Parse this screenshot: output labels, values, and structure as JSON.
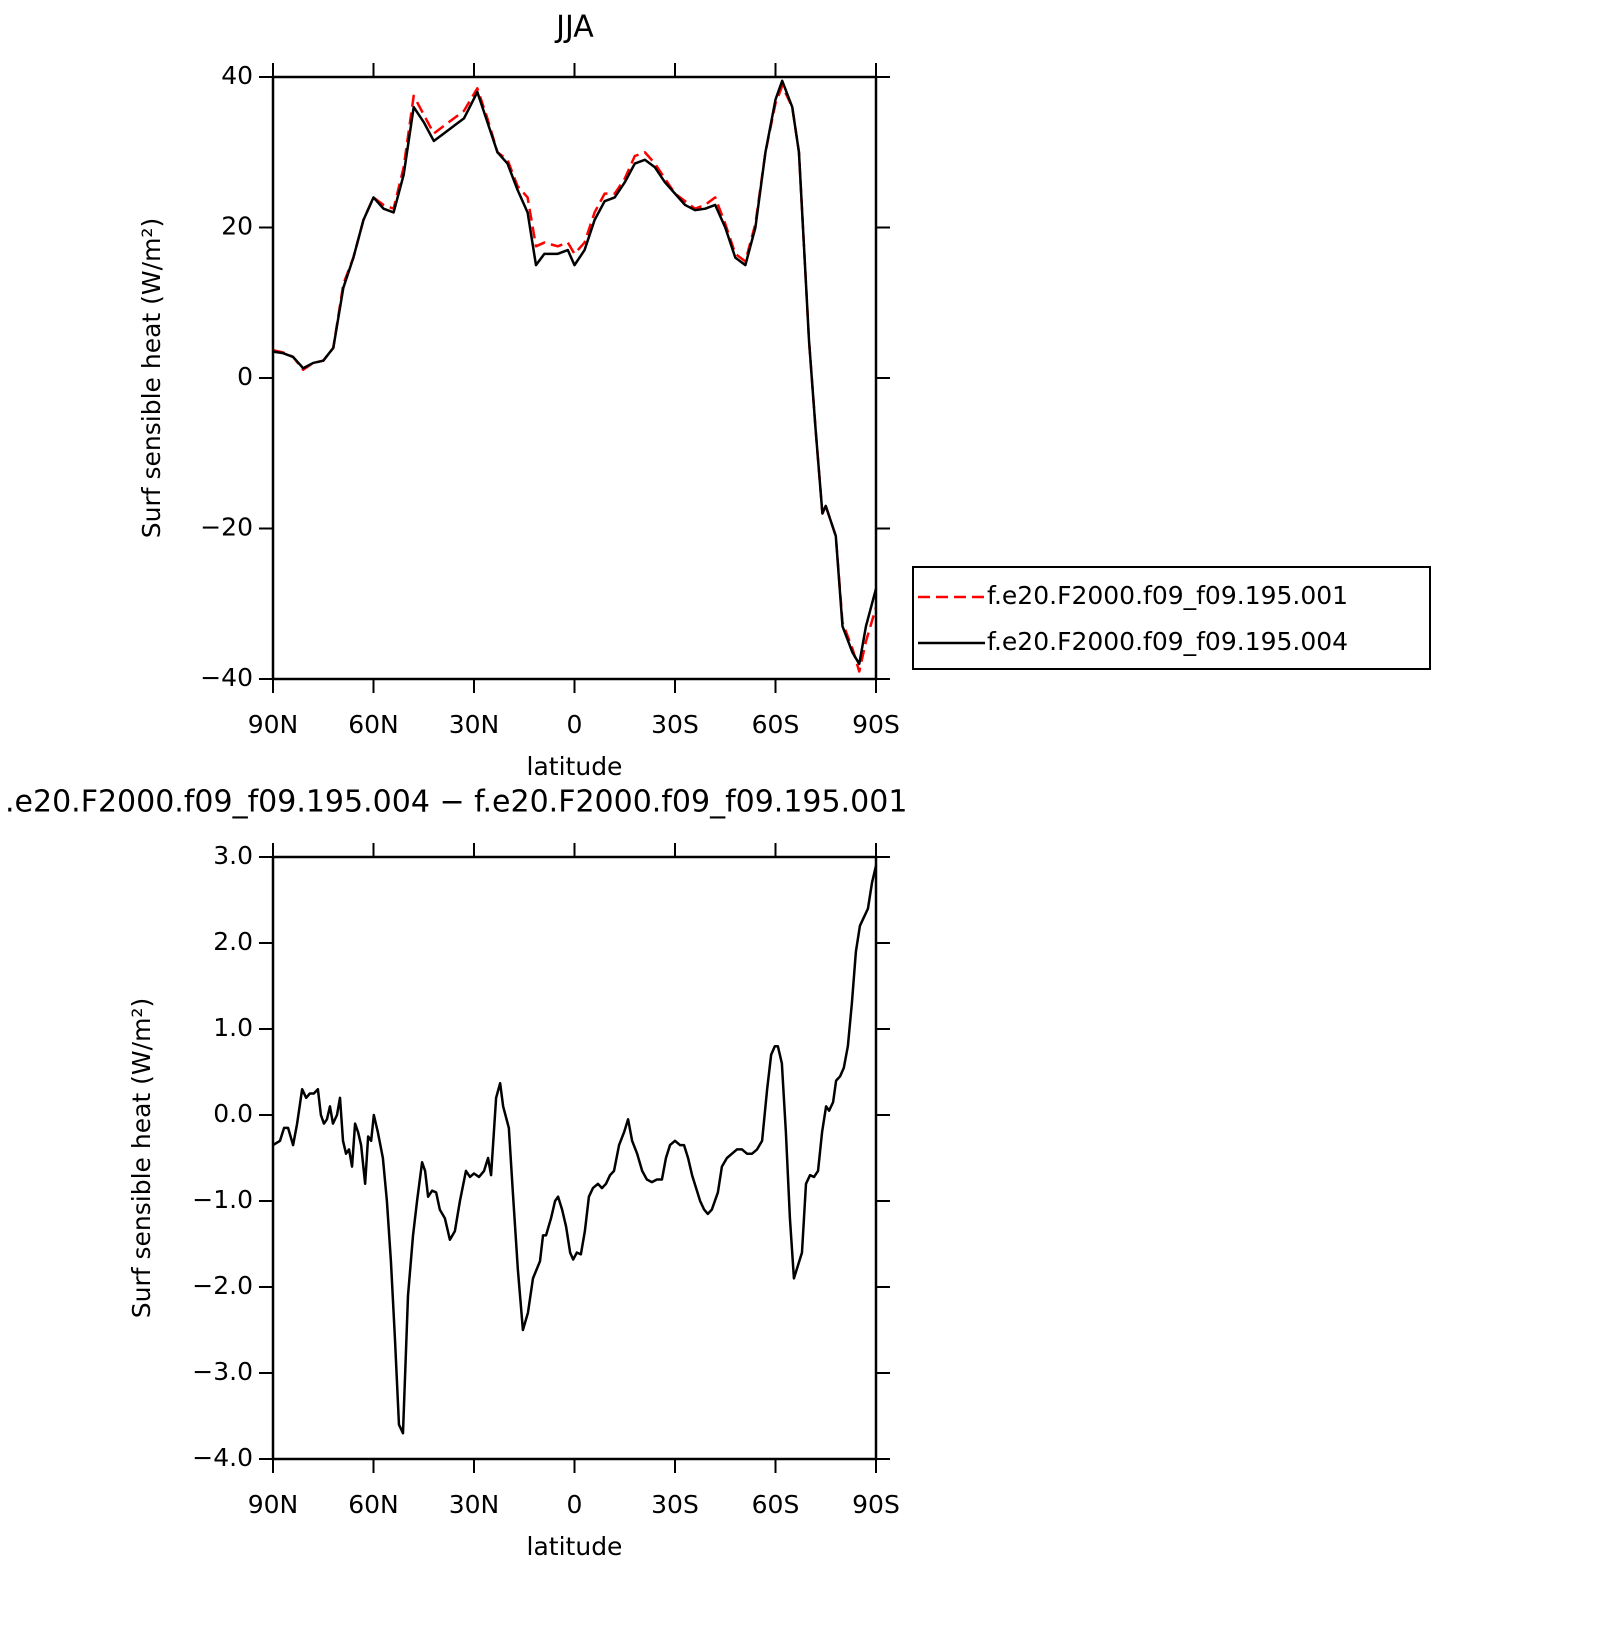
{
  "chart_data": [
    {
      "type": "line",
      "title": "JJA",
      "xlabel": "latitude",
      "ylabel": "Surf sensible heat (W/m²)",
      "xlim": [
        90,
        -90
      ],
      "xticks": [
        {
          "value": 90,
          "label": "90N"
        },
        {
          "value": 60,
          "label": "60N"
        },
        {
          "value": 30,
          "label": "30N"
        },
        0,
        {
          "value": -30,
          "label": "30S"
        },
        {
          "value": -60,
          "label": "60S"
        },
        {
          "value": -90,
          "label": "90S"
        }
      ],
      "ylim": [
        -40,
        40
      ],
      "yticks": [
        {
          "value": -40,
          "label": "−40"
        },
        {
          "value": -20,
          "label": "−20"
        },
        0,
        20,
        40
      ],
      "legend": "right",
      "x": [
        90,
        87,
        84,
        81,
        78,
        75,
        72,
        69,
        66,
        63,
        60,
        57,
        54,
        51,
        48,
        45,
        42,
        39,
        36,
        33,
        29,
        26,
        23,
        20,
        17,
        14,
        11.5,
        9,
        5,
        2,
        0,
        -3,
        -6,
        -9,
        -12,
        -15,
        -18,
        -21,
        -24,
        -27,
        -30,
        -33,
        -36,
        -39,
        -42,
        -45,
        -48,
        -51,
        -54,
        -57,
        -60,
        -62,
        -65,
        -67,
        -70,
        -72,
        -74,
        -75,
        -78,
        -80,
        -83,
        -85,
        -87,
        -90
      ],
      "series": [
        {
          "name": "f.e20.F2000.f09_f09.195.001",
          "color": "#ff0000",
          "dash": "dashed",
          "values": [
            3.7,
            3.4,
            2.8,
            1.1,
            2.0,
            2.3,
            4,
            12.5,
            16,
            21,
            24,
            23,
            22.5,
            28,
            37.5,
            35,
            32.5,
            33.5,
            34.5,
            35.5,
            38.5,
            34.5,
            30,
            29,
            25.5,
            24,
            17.5,
            18,
            17.5,
            18,
            16.5,
            18,
            22,
            24.5,
            24.5,
            26.5,
            29.5,
            30,
            28.5,
            26.5,
            24.5,
            23.5,
            22.5,
            23,
            24,
            20.5,
            16.5,
            15.5,
            20.5,
            30,
            36.5,
            38.8,
            36,
            30,
            5,
            -7,
            -18,
            -17,
            -21,
            -32.5,
            -36,
            -39,
            -35,
            -30.5
          ]
        },
        {
          "name": "f.e20.F2000.f09_f09.195.004",
          "color": "#000000",
          "dash": "solid",
          "values": [
            3.5,
            3.3,
            2.8,
            1.3,
            2.0,
            2.3,
            4,
            12,
            16,
            21,
            24,
            22.5,
            22,
            27,
            36,
            34,
            31.5,
            32.5,
            33.5,
            34.5,
            38,
            34,
            30,
            28.5,
            25,
            22,
            15,
            16.5,
            16.5,
            17,
            15,
            17,
            21,
            23.5,
            24,
            26,
            28.5,
            29,
            28,
            26,
            24.5,
            23,
            22.3,
            22.5,
            23,
            20,
            16,
            15,
            20,
            30,
            37,
            39.5,
            36,
            30,
            5,
            -7,
            -18,
            -17,
            -21,
            -33,
            -36.5,
            -38,
            -33,
            -28
          ]
        }
      ]
    },
    {
      "type": "line",
      "title": ".e20.F2000.f09_f09.195.004 − f.e20.F2000.f09_f09.195.001",
      "xlabel": "latitude",
      "ylabel": "Surf sensible heat (W/m²)",
      "xlim": [
        90,
        -90
      ],
      "xticks": [
        {
          "value": 90,
          "label": "90N"
        },
        {
          "value": 60,
          "label": "60N"
        },
        {
          "value": 30,
          "label": "30N"
        },
        0,
        {
          "value": -30,
          "label": "30S"
        },
        {
          "value": -60,
          "label": "60S"
        },
        {
          "value": -90,
          "label": "90S"
        }
      ],
      "ylim": [
        -4,
        3
      ],
      "yticks": [
        {
          "value": -4,
          "label": "−4.0"
        },
        {
          "value": -3,
          "label": "−3.0"
        },
        {
          "value": -2,
          "label": "−2.0"
        },
        {
          "value": -1,
          "label": "−1.0"
        },
        {
          "value": 0,
          "label": "0.0"
        },
        {
          "value": 1,
          "label": "1.0"
        },
        {
          "value": 2,
          "label": "2.0"
        },
        {
          "value": 3,
          "label": "3.0"
        }
      ],
      "x": [
        90,
        87.9,
        86.7,
        85.5,
        84.0,
        82.8,
        81.3,
        80.1,
        79.0,
        77.8,
        76.6,
        75.7,
        74.8,
        73.9,
        73.0,
        72.1,
        70.9,
        70.0,
        69.1,
        68.2,
        67.3,
        66.4,
        65.5,
        64.6,
        63.7,
        62.5,
        61.6,
        60.7,
        59.9,
        58.7,
        57.2,
        56.0,
        54.8,
        53.6,
        52.4,
        51.2,
        49.7,
        48.2,
        47.0,
        45.5,
        44.6,
        43.7,
        42.5,
        41.3,
        40.2,
        38.7,
        37.2,
        35.7,
        34.2,
        32.4,
        31.2,
        30.0,
        28.5,
        27.0,
        25.8,
        24.9,
        23.4,
        22.2,
        21.3,
        19.6,
        18.4,
        16.9,
        15.4,
        13.9,
        12.4,
        10.3,
        9.4,
        8.5,
        7.0,
        5.8,
        4.9,
        3.7,
        2.5,
        1.3,
        0.4,
        -0.7,
        -1.9,
        -3.1,
        -4.3,
        -5.5,
        -7.0,
        -8.2,
        -9.4,
        -10.6,
        -11.8,
        -13.3,
        -14.8,
        -16.0,
        -17.2,
        -18.7,
        -20.2,
        -21.6,
        -23.1,
        -24.6,
        -26.1,
        -27.3,
        -28.5,
        -30.0,
        -31.5,
        -32.7,
        -33.9,
        -35.1,
        -36.3,
        -37.5,
        -38.7,
        -39.8,
        -41.0,
        -42.8,
        -44.0,
        -45.5,
        -47.0,
        -48.5,
        -50.0,
        -51.5,
        -53.0,
        -54.5,
        -56.0,
        -57.5,
        -58.7,
        -59.8,
        -60.7,
        -61.9,
        -63.1,
        -64.3,
        -65.5,
        -66.7,
        -67.9,
        -69.1,
        -70.3,
        -71.5,
        -72.7,
        -73.9,
        -75.1,
        -76.0,
        -77.2,
        -78.1,
        -79.3,
        -80.4,
        -81.6,
        -82.8,
        -84.0,
        -85.2,
        -86.4,
        -87.6,
        -88.8,
        -90
      ],
      "series": [
        {
          "color": "#000000",
          "dash": "solid",
          "values": [
            -0.35,
            -0.3,
            -0.15,
            -0.15,
            -0.35,
            -0.1,
            0.3,
            0.2,
            0.25,
            0.25,
            0.3,
            0.0,
            -0.1,
            -0.05,
            0.1,
            -0.1,
            0.0,
            0.2,
            -0.3,
            -0.45,
            -0.4,
            -0.6,
            -0.1,
            -0.2,
            -0.35,
            -0.8,
            -0.25,
            -0.3,
            0.0,
            -0.2,
            -0.5,
            -1.0,
            -1.7,
            -2.6,
            -3.6,
            -3.7,
            -2.1,
            -1.4,
            -1.0,
            -0.55,
            -0.65,
            -0.95,
            -0.88,
            -0.9,
            -1.1,
            -1.2,
            -1.45,
            -1.35,
            -1.0,
            -0.65,
            -0.72,
            -0.68,
            -0.72,
            -0.65,
            -0.5,
            -0.7,
            0.2,
            0.37,
            0.1,
            -0.15,
            -0.9,
            -1.8,
            -2.5,
            -2.3,
            -1.9,
            -1.7,
            -1.4,
            -1.4,
            -1.2,
            -1.0,
            -0.95,
            -1.1,
            -1.3,
            -1.6,
            -1.68,
            -1.6,
            -1.62,
            -1.35,
            -0.95,
            -0.85,
            -0.8,
            -0.85,
            -0.8,
            -0.7,
            -0.65,
            -0.35,
            -0.2,
            -0.05,
            -0.3,
            -0.45,
            -0.65,
            -0.75,
            -0.78,
            -0.75,
            -0.75,
            -0.5,
            -0.35,
            -0.3,
            -0.35,
            -0.35,
            -0.5,
            -0.7,
            -0.85,
            -1.0,
            -1.1,
            -1.15,
            -1.1,
            -0.9,
            -0.6,
            -0.5,
            -0.45,
            -0.4,
            -0.4,
            -0.45,
            -0.45,
            -0.4,
            -0.3,
            0.3,
            0.7,
            0.8,
            0.8,
            0.6,
            -0.2,
            -1.2,
            -1.9,
            -1.75,
            -1.6,
            -0.8,
            -0.7,
            -0.72,
            -0.65,
            -0.2,
            0.1,
            0.05,
            0.15,
            0.4,
            0.45,
            0.55,
            0.8,
            1.3,
            1.9,
            2.2,
            2.3,
            2.4,
            2.7,
            2.9
          ]
        }
      ]
    }
  ]
}
